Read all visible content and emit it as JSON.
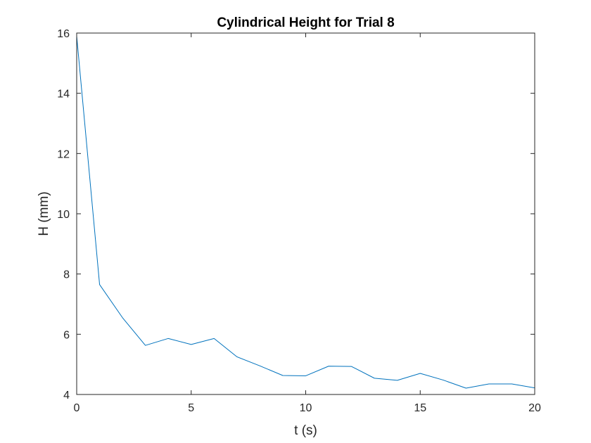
{
  "chart_data": {
    "type": "line",
    "title": "Cylindrical Height for Trial 8",
    "xlabel": "t (s)",
    "ylabel": "H (mm)",
    "xlim": [
      0,
      20
    ],
    "ylim": [
      4,
      16
    ],
    "xticks": [
      0,
      5,
      10,
      15,
      20
    ],
    "yticks": [
      4,
      6,
      8,
      10,
      12,
      14,
      16
    ],
    "grid": false,
    "series": [
      {
        "color": "#0072BD",
        "x": [
          0,
          1,
          2,
          3,
          4,
          5,
          6,
          7,
          8,
          9,
          10,
          11,
          12,
          13,
          14,
          15,
          16,
          17,
          18,
          19,
          20
        ],
        "y": [
          15.9,
          7.65,
          6.55,
          5.63,
          5.86,
          5.66,
          5.86,
          5.25,
          4.95,
          4.63,
          4.62,
          4.94,
          4.93,
          4.54,
          4.47,
          4.7,
          4.48,
          4.21,
          4.35,
          4.35,
          4.22
        ]
      }
    ]
  }
}
